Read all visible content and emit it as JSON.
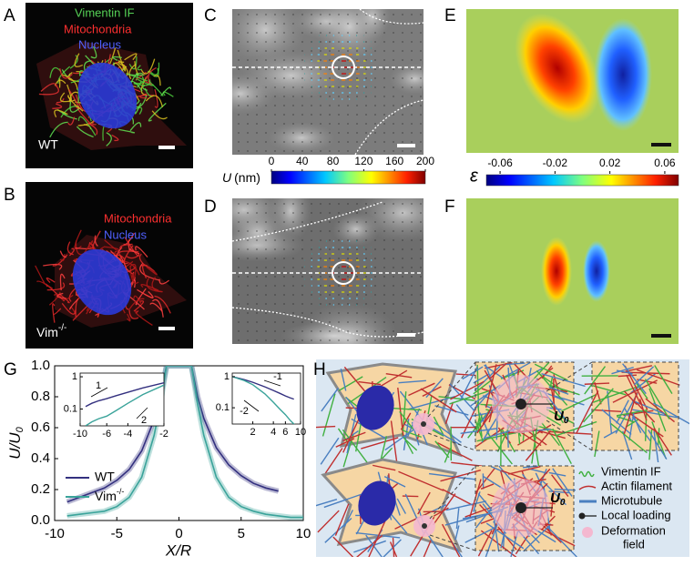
{
  "panels": {
    "A": {
      "label": "A",
      "stains": [
        "Vimentin IF",
        "Mitochondria",
        "Nucleus"
      ],
      "cell": "WT"
    },
    "B": {
      "label": "B",
      "stains": [
        "Mitochondria",
        "Nucleus"
      ],
      "cell": "Vim",
      "cell_sup": "-/-"
    },
    "C": {
      "label": "C",
      "colorbar": {
        "label": "U",
        "unit": "(nm)",
        "lim": [
          0,
          200
        ],
        "ticks": [
          0,
          40,
          80,
          120,
          160,
          200
        ]
      }
    },
    "D": {
      "label": "D"
    },
    "E": {
      "label": "E",
      "colorbar": {
        "label": "ε",
        "lim": [
          -0.07,
          0.07
        ],
        "ticks": [
          -0.06,
          -0.02,
          0.02,
          0.06
        ]
      }
    },
    "F": {
      "label": "F"
    },
    "G": {
      "label": "G"
    },
    "H": {
      "label": "H",
      "legend": [
        "Vimentin IF",
        "Actin filament",
        "Microtubule",
        "Local loading",
        [
          "Deformation",
          "field"
        ]
      ],
      "force_label": "U",
      "force_sub": "0"
    }
  },
  "chart_data": {
    "type": "line",
    "ylabel": "U/U",
    "ylabel_sub": "0",
    "xlabel": "X/R",
    "xlim": [
      -10,
      10
    ],
    "ylim": [
      0,
      1.0
    ],
    "xticks": [
      -10,
      -5,
      0,
      5,
      10
    ],
    "yticks": [
      {
        "value": 0,
        "label": "0.0"
      },
      {
        "value": 0.2,
        "label": "0.2"
      },
      {
        "value": 0.4,
        "label": "0.4"
      },
      {
        "value": 0.6,
        "label": "0.6"
      },
      {
        "value": 0.8,
        "label": "0.8"
      },
      {
        "value": 1.0,
        "label": "1.0"
      }
    ],
    "legend": "lower left",
    "series": [
      {
        "name": "WT",
        "color": "#33307f",
        "x": [
          -9,
          -8,
          -7,
          -6,
          -5,
          -4,
          -3,
          -2,
          -1.5,
          -1,
          1,
          1.5,
          2,
          3,
          4,
          5,
          6,
          7,
          8
        ],
        "values": [
          0.12,
          0.15,
          0.18,
          0.21,
          0.26,
          0.33,
          0.45,
          0.65,
          0.8,
          1.0,
          1.0,
          0.8,
          0.66,
          0.47,
          0.36,
          0.29,
          0.24,
          0.21,
          0.19
        ]
      },
      {
        "name": "Vim",
        "name_sup": "-/-",
        "color": "#3aa39a",
        "x": [
          -9,
          -8,
          -7,
          -6,
          -5,
          -4,
          -3,
          -2,
          -1.5,
          -1,
          1,
          1.5,
          2,
          3,
          4,
          5,
          6,
          7,
          8,
          9,
          10
        ],
        "values": [
          0.03,
          0.04,
          0.05,
          0.06,
          0.09,
          0.15,
          0.28,
          0.55,
          0.75,
          1.0,
          1.0,
          0.75,
          0.55,
          0.28,
          0.15,
          0.09,
          0.06,
          0.04,
          0.03,
          0.02,
          0.02
        ]
      }
    ],
    "insets": [
      {
        "xlim": [
          -10,
          -2
        ],
        "ylim": [
          0.03,
          1.3
        ],
        "log": true,
        "xticks": [
          -10,
          -6,
          -4,
          -2
        ],
        "yticks": [
          1,
          0.1
        ],
        "slope_labels": [
          "1",
          "2"
        ]
      },
      {
        "xlim": [
          1,
          10
        ],
        "ylim": [
          0.03,
          1.3
        ],
        "log": true,
        "xticks": [
          2,
          4,
          6,
          10
        ],
        "yticks": [
          1,
          0.1
        ],
        "slope_labels": [
          "-1",
          "-2"
        ]
      }
    ]
  }
}
